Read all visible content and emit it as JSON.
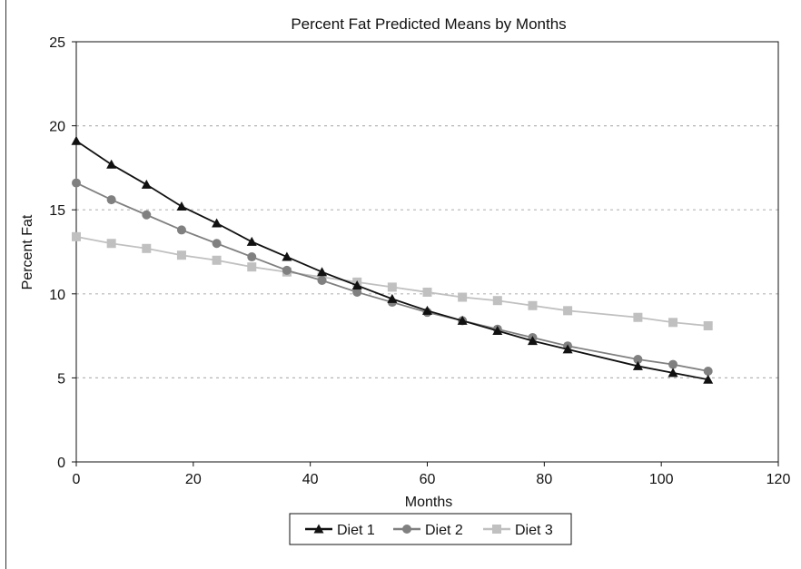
{
  "chart_data": {
    "type": "line",
    "title": "Percent Fat Predicted Means by Months",
    "xlabel": "Months",
    "ylabel": "Percent Fat",
    "xlim": [
      0,
      120
    ],
    "ylim": [
      0,
      25
    ],
    "xticks": [
      0,
      20,
      40,
      60,
      80,
      100,
      120
    ],
    "yticks": [
      0,
      5,
      10,
      15,
      20,
      25
    ],
    "grid": "horizontal dotted",
    "legend": "bottom",
    "series": [
      {
        "name": "Diet 1",
        "color": "#111111",
        "marker": "triangle",
        "x": [
          0,
          6,
          12,
          18,
          24,
          30,
          36,
          42,
          48,
          54,
          60,
          66,
          72,
          78,
          84,
          96,
          102,
          108
        ],
        "y": [
          19.1,
          17.7,
          16.5,
          15.2,
          14.2,
          13.1,
          12.2,
          11.3,
          10.5,
          9.7,
          9.0,
          8.4,
          7.8,
          7.2,
          6.7,
          5.7,
          5.3,
          4.9
        ]
      },
      {
        "name": "Diet 2",
        "color": "#808080",
        "marker": "circle",
        "x": [
          0,
          6,
          12,
          18,
          24,
          30,
          36,
          42,
          48,
          54,
          60,
          66,
          72,
          78,
          84,
          96,
          102,
          108
        ],
        "y": [
          16.6,
          15.6,
          14.7,
          13.8,
          13.0,
          12.2,
          11.4,
          10.8,
          10.1,
          9.5,
          8.9,
          8.4,
          7.9,
          7.4,
          6.9,
          6.1,
          5.8,
          5.4
        ]
      },
      {
        "name": "Diet 3",
        "color": "#c0c0c0",
        "marker": "square",
        "x": [
          0,
          6,
          12,
          18,
          24,
          30,
          36,
          42,
          48,
          54,
          60,
          66,
          72,
          78,
          84,
          96,
          102,
          108
        ],
        "y": [
          13.4,
          13.0,
          12.7,
          12.3,
          12.0,
          11.6,
          11.3,
          11.0,
          10.7,
          10.4,
          10.1,
          9.8,
          9.6,
          9.3,
          9.0,
          8.6,
          8.3,
          8.1
        ]
      }
    ]
  }
}
